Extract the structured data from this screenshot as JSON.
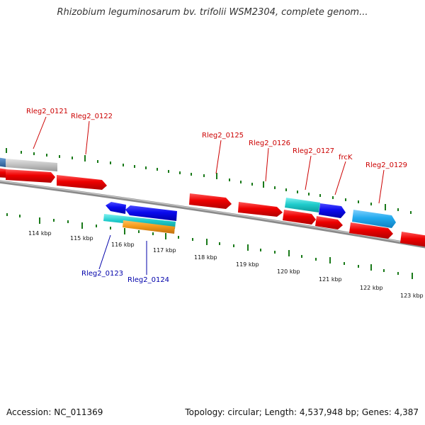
{
  "title": "Rhizobium leguminosarum bv. trifolii WSM2304, complete genom...",
  "footer": {
    "accession": "Accession: NC_011369",
    "summary": "Topology: circular; Length: 4,537,948 bp; Genes: 4,387"
  },
  "colors": {
    "forward_label": "#cc0000",
    "reverse_label": "#0000aa",
    "tick": "#1a7a1a",
    "backbone": "#888888"
  },
  "scale_labels": [
    "114 kbp",
    "115 kbp",
    "116 kbp",
    "117 kbp",
    "118 kbp",
    "119 kbp",
    "120 kbp",
    "121 kbp",
    "122 kbp",
    "123 kbp"
  ],
  "gene_labels": [
    {
      "id": "Rleg2_0121",
      "strand": "forward"
    },
    {
      "id": "Rleg2_0122",
      "strand": "forward"
    },
    {
      "id": "Rleg2_0125",
      "strand": "forward"
    },
    {
      "id": "Rleg2_0126",
      "strand": "forward"
    },
    {
      "id": "Rleg2_0127",
      "strand": "forward"
    },
    {
      "id": "frcK",
      "strand": "forward"
    },
    {
      "id": "Rleg2_0129",
      "strand": "forward"
    },
    {
      "id": "Rleg2_0123",
      "strand": "reverse"
    },
    {
      "id": "Rleg2_0124",
      "strand": "reverse"
    }
  ]
}
